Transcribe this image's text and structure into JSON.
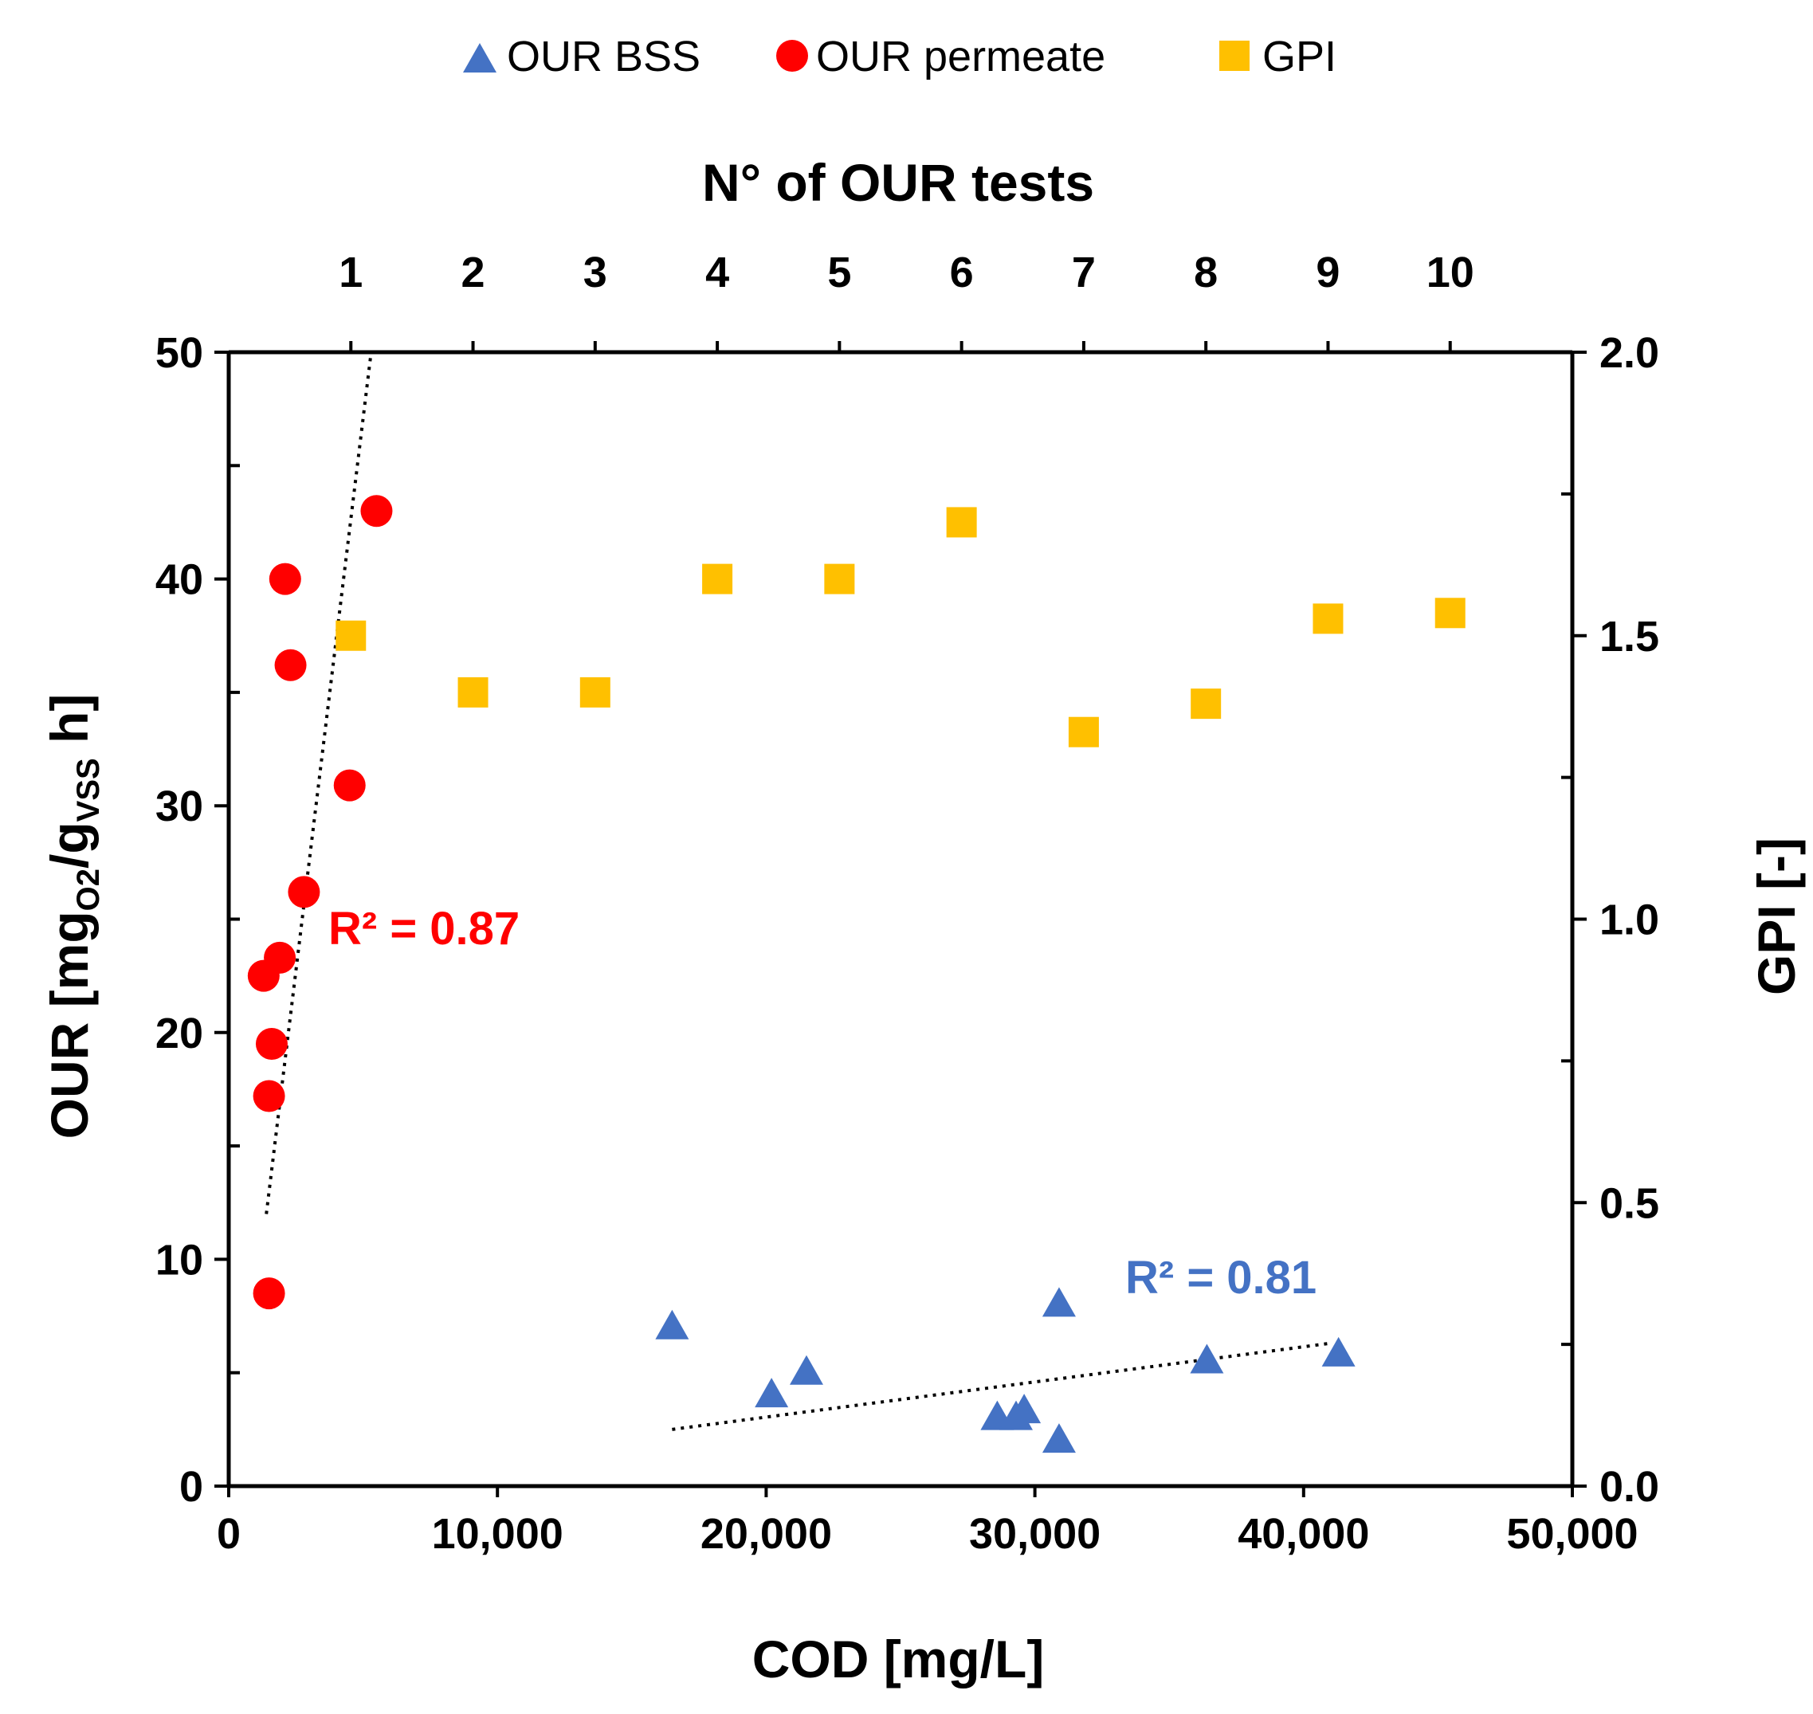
{
  "chart_data": {
    "type": "scatter",
    "legend": {
      "placement": "top-center",
      "entries": [
        {
          "key": "our_bss",
          "label": "OUR BSS",
          "marker": "triangle",
          "color": "#4472C4"
        },
        {
          "key": "our_permeate",
          "label": "OUR permeate",
          "marker": "circle",
          "color": "#FF0000"
        },
        {
          "key": "gpi",
          "label": "GPI",
          "marker": "square",
          "color": "#FFC000"
        }
      ]
    },
    "axes": {
      "x_bottom": {
        "label": "COD [mg/L]",
        "min": 0,
        "max": 50000,
        "ticks": [
          0,
          10000,
          20000,
          30000,
          40000,
          50000
        ],
        "tick_labels": [
          "0",
          "10,000",
          "20,000",
          "30,000",
          "40,000",
          "50,000"
        ]
      },
      "x_top": {
        "label": "N° of OUR tests",
        "min": -0.0,
        "max": 11.0,
        "ticks": [
          1,
          2,
          3,
          4,
          5,
          6,
          7,
          8,
          9,
          10
        ],
        "tick_labels": [
          "1",
          "2",
          "3",
          "4",
          "5",
          "6",
          "7",
          "8",
          "9",
          "10"
        ]
      },
      "y_left": {
        "label_main": "OUR [mg",
        "label_sub1": "O2",
        "label_mid": "/g",
        "label_sub2": "VSS",
        "label_end": " h]",
        "min": 0,
        "max": 50,
        "ticks": [
          0,
          10,
          20,
          30,
          40,
          50
        ],
        "tick_labels": [
          "0",
          "10",
          "20",
          "30",
          "40",
          "50"
        ]
      },
      "y_right": {
        "label": "GPI [-]",
        "min": 0,
        "max": 2.0,
        "ticks": [
          0,
          0.5,
          1.0,
          1.5,
          2.0
        ],
        "tick_labels": [
          "0.0",
          "0.5",
          "1.0",
          "1.5",
          "2.0"
        ]
      }
    },
    "series": [
      {
        "name": "OUR BSS",
        "color": "#4472C4",
        "marker": "triangle",
        "x_axis": "x_bottom",
        "y_axis": "y_left",
        "points": [
          [
            16500,
            7.0
          ],
          [
            20200,
            4.0
          ],
          [
            21500,
            5.0
          ],
          [
            28600,
            3.0
          ],
          [
            29300,
            3.0
          ],
          [
            29600,
            3.3
          ],
          [
            30900,
            8.0
          ],
          [
            30900,
            2.0
          ],
          [
            36400,
            5.5
          ],
          [
            41300,
            5.8
          ]
        ]
      },
      {
        "name": "OUR permeate",
        "color": "#FF0000",
        "marker": "circle",
        "x_axis": "x_bottom",
        "y_axis": "y_left",
        "points": [
          [
            1500,
            8.5
          ],
          [
            1500,
            17.2
          ],
          [
            1600,
            19.5
          ],
          [
            1300,
            22.5
          ],
          [
            1900,
            23.3
          ],
          [
            2800,
            26.2
          ],
          [
            4500,
            30.9
          ],
          [
            2300,
            36.2
          ],
          [
            2100,
            40.0
          ],
          [
            5500,
            43.0
          ]
        ]
      },
      {
        "name": "GPI",
        "color": "#FFC000",
        "marker": "square",
        "x_axis": "x_top",
        "y_axis": "y_right",
        "points": [
          [
            1,
            1.5
          ],
          [
            2,
            1.4
          ],
          [
            3,
            1.4
          ],
          [
            4,
            1.6
          ],
          [
            5,
            1.6
          ],
          [
            6,
            1.7
          ],
          [
            7,
            1.33
          ],
          [
            8,
            1.38
          ],
          [
            9,
            1.53
          ],
          [
            10,
            1.54
          ]
        ]
      }
    ],
    "trendlines": [
      {
        "series": "OUR permeate",
        "from": [
          1400,
          12.0
        ],
        "to": [
          5300,
          50.0
        ],
        "label": "R² = 0.87",
        "color": "#FF0000"
      },
      {
        "series": "OUR BSS",
        "from": [
          16500,
          2.5
        ],
        "to": [
          41000,
          6.3
        ],
        "label": "R² = 0.81",
        "color": "#4472C4"
      }
    ]
  }
}
